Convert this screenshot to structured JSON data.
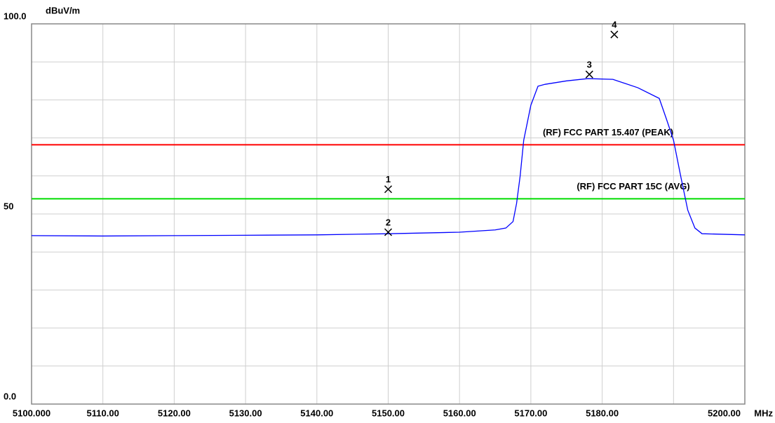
{
  "chart_data": {
    "type": "line",
    "y_label": "dBuV/m",
    "x_label": "MHz",
    "xlim": [
      5100,
      5200
    ],
    "ylim": [
      0,
      100
    ],
    "xticks": [
      {
        "value": 5100,
        "label": "5100.000"
      },
      {
        "value": 5110,
        "label": "5110.00"
      },
      {
        "value": 5120,
        "label": "5120.00"
      },
      {
        "value": 5130,
        "label": "5130.00"
      },
      {
        "value": 5140,
        "label": "5140.00"
      },
      {
        "value": 5150,
        "label": "5150.00"
      },
      {
        "value": 5160,
        "label": "5160.00"
      },
      {
        "value": 5170,
        "label": "5170.00"
      },
      {
        "value": 5180,
        "label": "5180.00"
      },
      {
        "value": 5200,
        "label": "5200.00"
      }
    ],
    "yticks": [
      {
        "value": 0,
        "label": "0.0"
      },
      50,
      {
        "value": 100,
        "label": "100.0"
      }
    ],
    "xgrid": [
      5110,
      5120,
      5130,
      5140,
      5150,
      5160,
      5170,
      5180,
      5190
    ],
    "ygrid": [
      10,
      20,
      30,
      40,
      50,
      60,
      70,
      80,
      90
    ],
    "grid": true,
    "series": [
      {
        "color": "#0000ff",
        "x": [
          5100,
          5110,
          5120,
          5130,
          5140,
          5150,
          5160,
          5165,
          5166.5,
          5167.5,
          5168,
          5168.5,
          5169,
          5170,
          5171,
          5172,
          5175,
          5178,
          5181.5,
          5185,
          5188,
          5189,
          5190,
          5191,
          5192,
          5193,
          5194,
          5200
        ],
        "values": [
          44.3,
          44.2,
          44.3,
          44.4,
          44.5,
          44.8,
          45.2,
          45.8,
          46.3,
          48,
          52.8,
          60,
          69.4,
          78.6,
          83.6,
          84.1,
          85,
          85.6,
          85.4,
          83.2,
          80.4,
          75,
          69.4,
          60,
          51,
          46.3,
          44.8,
          44.5
        ]
      }
    ],
    "limit_lines": [
      {
        "name": "(RF) FCC PART 15.407  (PEAK)",
        "value": 68.2,
        "color": "#ff0000"
      },
      {
        "name": "(RF) FCC PART 15C (AVG)",
        "value": 54,
        "color": "#00dd00"
      }
    ],
    "markers": {
      "labels": [
        "1",
        "2",
        "3",
        "4"
      ],
      "x": [
        5150,
        5150,
        5178.2,
        5181.7
      ],
      "values": [
        56.5,
        45.2,
        86.7,
        97.2
      ]
    }
  }
}
